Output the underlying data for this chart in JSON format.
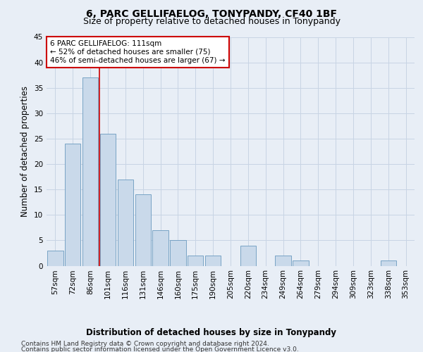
{
  "title": "6, PARC GELLIFAELOG, TONYPANDY, CF40 1BF",
  "subtitle": "Size of property relative to detached houses in Tonypandy",
  "xlabel": "Distribution of detached houses by size in Tonypandy",
  "ylabel": "Number of detached properties",
  "categories": [
    "57sqm",
    "72sqm",
    "86sqm",
    "101sqm",
    "116sqm",
    "131sqm",
    "146sqm",
    "160sqm",
    "175sqm",
    "190sqm",
    "205sqm",
    "220sqm",
    "234sqm",
    "249sqm",
    "264sqm",
    "279sqm",
    "294sqm",
    "309sqm",
    "323sqm",
    "338sqm",
    "353sqm"
  ],
  "values": [
    3,
    24,
    37,
    26,
    17,
    14,
    7,
    5,
    2,
    2,
    0,
    4,
    0,
    2,
    1,
    0,
    0,
    0,
    0,
    1,
    0
  ],
  "bar_color": "#c9d9ea",
  "bar_edge_color": "#6a9abf",
  "vline_x": 2.5,
  "vline_color": "#cc0000",
  "annotation_text": "6 PARC GELLIFAELOG: 111sqm\n← 52% of detached houses are smaller (75)\n46% of semi-detached houses are larger (67) →",
  "annotation_box_color": "#ffffff",
  "annotation_box_edge_color": "#cc0000",
  "ylim": [
    0,
    45
  ],
  "yticks": [
    0,
    5,
    10,
    15,
    20,
    25,
    30,
    35,
    40,
    45
  ],
  "grid_color": "#c8d4e4",
  "background_color": "#e8eef6",
  "footer_line1": "Contains HM Land Registry data © Crown copyright and database right 2024.",
  "footer_line2": "Contains public sector information licensed under the Open Government Licence v3.0.",
  "title_fontsize": 10,
  "subtitle_fontsize": 9,
  "axis_label_fontsize": 8.5,
  "tick_fontsize": 7.5,
  "annotation_fontsize": 7.5,
  "footer_fontsize": 6.5
}
